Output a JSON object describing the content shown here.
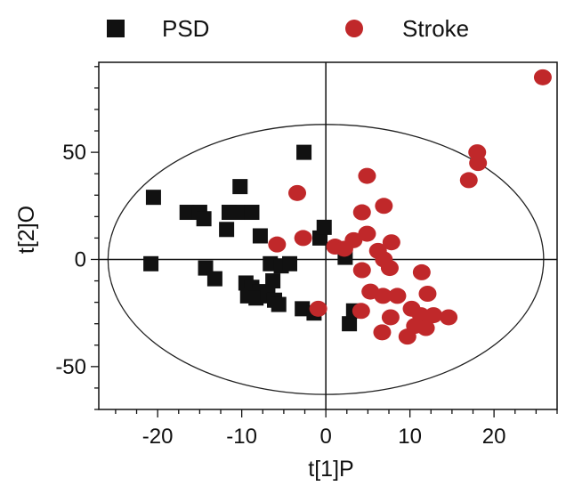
{
  "chart_data": {
    "type": "scatter",
    "xlabel": "t[1]P",
    "ylabel": "t[2]O",
    "xlim": [
      -27,
      27.5
    ],
    "ylim": [
      -70,
      92
    ],
    "x_ticks": [
      -20,
      -10,
      0,
      10,
      20
    ],
    "x_tick_labels": [
      "-20",
      "-10",
      "0",
      "10",
      "20"
    ],
    "y_ticks": [
      -50,
      0,
      50
    ],
    "y_tick_labels": [
      "-50",
      "0",
      "50"
    ],
    "x_minor_step": 2.5,
    "y_minor_step": 10,
    "legend_position": "top",
    "ellipse": {
      "cx": 0,
      "cy": 0,
      "rx": 25.9,
      "ry": 63
    },
    "grid": false,
    "colors": {
      "PSD": "#111111",
      "Stroke": "#c0282a"
    },
    "series": [
      {
        "name": "PSD",
        "marker": "square",
        "points": [
          [
            -2.6,
            50
          ],
          [
            -20.5,
            29
          ],
          [
            -16.5,
            22
          ],
          [
            -15,
            22
          ],
          [
            -14.5,
            19
          ],
          [
            -11.5,
            22
          ],
          [
            -10.5,
            22
          ],
          [
            -8.8,
            22
          ],
          [
            -10.2,
            34
          ],
          [
            -11.8,
            14
          ],
          [
            -7.8,
            11
          ],
          [
            -20.8,
            -2
          ],
          [
            -14.3,
            -4
          ],
          [
            -13.2,
            -9
          ],
          [
            -9.5,
            -11
          ],
          [
            -8.8,
            -13
          ],
          [
            -7.8,
            -15
          ],
          [
            -6.3,
            -10
          ],
          [
            -6.6,
            -2
          ],
          [
            -5.3,
            -3
          ],
          [
            -4.3,
            -2
          ],
          [
            -9.3,
            -17
          ],
          [
            -8.3,
            -18
          ],
          [
            -6.9,
            -17
          ],
          [
            -6.1,
            -19
          ],
          [
            -5.6,
            -21
          ],
          [
            -2.8,
            -23
          ],
          [
            -1.4,
            -25
          ],
          [
            -0.7,
            10
          ],
          [
            -0.2,
            15
          ],
          [
            2.3,
            1
          ],
          [
            2.8,
            -30
          ],
          [
            3.3,
            -24
          ]
        ]
      },
      {
        "name": "Stroke",
        "marker": "circle",
        "points": [
          [
            25.8,
            85
          ],
          [
            18.0,
            50
          ],
          [
            18.1,
            45
          ],
          [
            17.0,
            37
          ],
          [
            4.9,
            39
          ],
          [
            -3.4,
            31
          ],
          [
            4.3,
            22
          ],
          [
            6.9,
            25
          ],
          [
            -5.8,
            7
          ],
          [
            -2.7,
            10
          ],
          [
            1.1,
            6
          ],
          [
            2.2,
            5
          ],
          [
            3.3,
            9
          ],
          [
            4.9,
            12
          ],
          [
            6.2,
            4
          ],
          [
            7.8,
            8
          ],
          [
            6.9,
            0
          ],
          [
            7.6,
            -4
          ],
          [
            4.3,
            -5
          ],
          [
            5.3,
            -15
          ],
          [
            4.2,
            -24
          ],
          [
            6.8,
            -17
          ],
          [
            7.7,
            -27
          ],
          [
            8.5,
            -17
          ],
          [
            10.2,
            -23
          ],
          [
            11.4,
            -6
          ],
          [
            12.1,
            -16
          ],
          [
            11.3,
            -26
          ],
          [
            11.9,
            -32
          ],
          [
            10.6,
            -31
          ],
          [
            9.7,
            -36
          ],
          [
            6.7,
            -34
          ],
          [
            12.8,
            -26
          ],
          [
            14.6,
            -27
          ],
          [
            -0.9,
            -23
          ]
        ]
      }
    ]
  }
}
